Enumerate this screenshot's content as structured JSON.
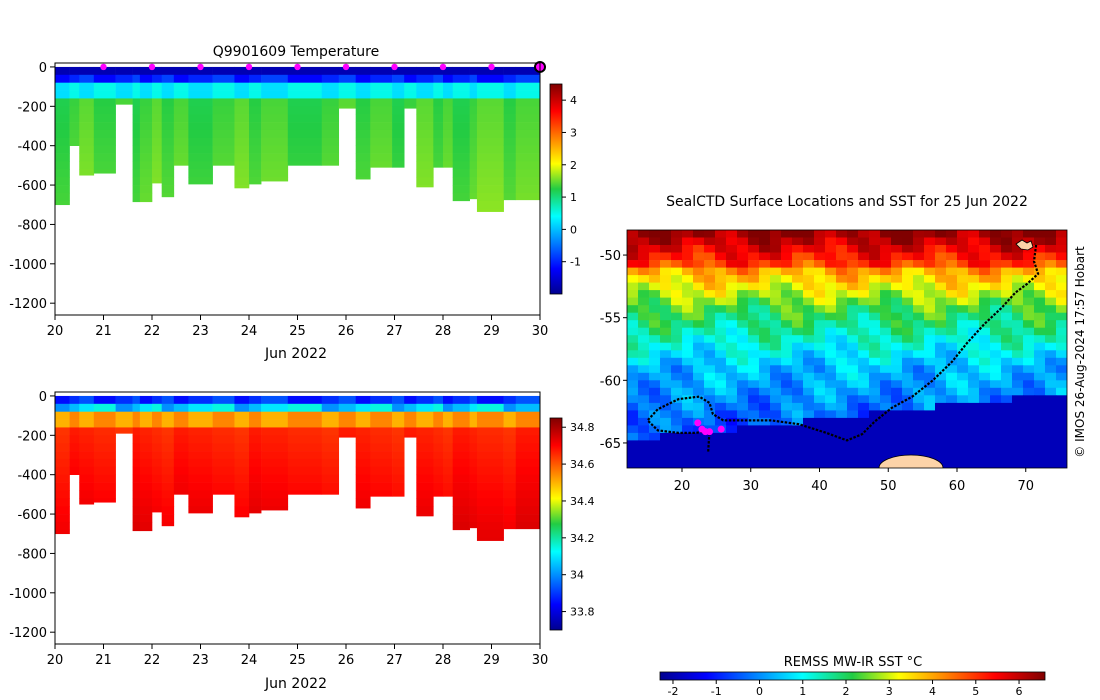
{
  "figure_title": "Q9901609  Temperature",
  "chart_data": [
    {
      "id": "temperature",
      "type": "heatmap",
      "title": "Q9901609  Temperature",
      "xlabel": "Jun 2022",
      "ylabel": "",
      "xlim": [
        20,
        30
      ],
      "ylim": [
        -1260,
        20
      ],
      "xticks": [
        20,
        21,
        22,
        23,
        24,
        25,
        26,
        27,
        28,
        29,
        30
      ],
      "yticks": [
        0,
        -200,
        -400,
        -600,
        -800,
        -1000,
        -1200
      ],
      "colorbar": {
        "range": [
          -2,
          4.5
        ],
        "ticks": [
          -1,
          0,
          1,
          2,
          3,
          4
        ]
      },
      "value_mode": "temperature",
      "surface_markers_x": [
        21,
        22,
        23,
        24,
        25,
        26,
        27,
        28,
        29,
        30
      ],
      "profile_x_edges": [
        20,
        20.3,
        20.5,
        20.8,
        21.25,
        21.6,
        21.75,
        22.0,
        22.2,
        22.45,
        22.75,
        23.25,
        23.7,
        24.0,
        24.25,
        24.8,
        25.5,
        25.85,
        26.2,
        26.5,
        26.95,
        27.2,
        27.45,
        27.8,
        28.0,
        28.2,
        28.55,
        28.7,
        29.25,
        29.5,
        30.0
      ],
      "profile_max_depth": [
        -700,
        -400,
        -550,
        -540,
        -190,
        -685,
        -685,
        -590,
        -660,
        -500,
        -595,
        -500,
        -615,
        -595,
        -580,
        -500,
        -500,
        -210,
        -570,
        -510,
        -510,
        -210,
        -610,
        -510,
        -510,
        -680,
        -670,
        -735,
        -675,
        -675
      ]
    },
    {
      "id": "salinity",
      "type": "heatmap",
      "title": "",
      "xlabel": "Jun 2022",
      "ylabel": "",
      "xlim": [
        20,
        30
      ],
      "ylim": [
        -1260,
        20
      ],
      "xticks": [
        20,
        21,
        22,
        23,
        24,
        25,
        26,
        27,
        28,
        29,
        30
      ],
      "yticks": [
        0,
        -200,
        -400,
        -600,
        -800,
        -1000,
        -1200
      ],
      "colorbar": {
        "range": [
          33.7,
          34.85
        ],
        "ticks": [
          33.8,
          34,
          34.2,
          34.4,
          34.6,
          34.8
        ]
      },
      "value_mode": "salinity",
      "profile_x_edges": [
        20,
        20.3,
        20.5,
        20.8,
        21.25,
        21.6,
        21.75,
        22.0,
        22.2,
        22.45,
        22.75,
        23.25,
        23.7,
        24.0,
        24.25,
        24.8,
        25.5,
        25.85,
        26.2,
        26.5,
        26.95,
        27.2,
        27.45,
        27.8,
        28.0,
        28.2,
        28.55,
        28.7,
        29.25,
        29.5,
        30.0
      ],
      "profile_max_depth": [
        -700,
        -400,
        -550,
        -540,
        -190,
        -685,
        -685,
        -590,
        -660,
        -500,
        -595,
        -500,
        -615,
        -595,
        -580,
        -500,
        -500,
        -210,
        -570,
        -510,
        -510,
        -210,
        -610,
        -510,
        -510,
        -680,
        -670,
        -735,
        -675,
        -675
      ]
    },
    {
      "id": "sst_map",
      "type": "heatmap",
      "title": "SealCTD Surface Locations and SST for 25 Jun 2022",
      "xlabel": "",
      "ylabel": "",
      "xlim": [
        12,
        76
      ],
      "ylim": [
        -67,
        -48
      ],
      "xticks": [
        20,
        30,
        40,
        50,
        60,
        70
      ],
      "yticks": [
        -50,
        -55,
        -60,
        -65
      ],
      "colorbar": {
        "label": "REMSS MW-IR SST °C",
        "range": [
          -2.3,
          6.6
        ],
        "ticks": [
          -2,
          -1,
          0,
          1,
          2,
          3,
          4,
          5,
          6
        ]
      },
      "track_points": [
        [
          71.5,
          -49.2
        ],
        [
          71.2,
          -50.5
        ],
        [
          71.8,
          -51.5
        ],
        [
          70.2,
          -52.3
        ],
        [
          68.5,
          -53.0
        ],
        [
          66.5,
          -54.2
        ],
        [
          64.0,
          -55.5
        ],
        [
          61.5,
          -57.0
        ],
        [
          59.3,
          -58.5
        ],
        [
          56.5,
          -60.0
        ],
        [
          53.5,
          -61.3
        ],
        [
          50.5,
          -62.2
        ],
        [
          48.0,
          -63.3
        ],
        [
          46.2,
          -64.3
        ],
        [
          44.0,
          -64.8
        ],
        [
          41.0,
          -64.2
        ],
        [
          37.0,
          -63.5
        ],
        [
          33.0,
          -63.2
        ],
        [
          29.0,
          -63.2
        ],
        [
          26.0,
          -63.2
        ],
        [
          24.5,
          -62.7
        ],
        [
          24.0,
          -61.8
        ],
        [
          22.5,
          -61.3
        ],
        [
          19.5,
          -61.5
        ],
        [
          16.5,
          -62.3
        ],
        [
          15.0,
          -63.2
        ],
        [
          16.5,
          -64.0
        ],
        [
          19.5,
          -64.2
        ],
        [
          22.0,
          -64.2
        ],
        [
          24.0,
          -64.0
        ],
        [
          23.8,
          -65.8
        ]
      ],
      "surface_locations": [
        [
          22.3,
          -63.4
        ],
        [
          22.9,
          -63.9
        ],
        [
          23.4,
          -64.1
        ],
        [
          24.0,
          -64.1
        ],
        [
          25.7,
          -63.9
        ]
      ],
      "land": "Antarctica coast, Kerguelen Islands"
    }
  ],
  "credit": "© IMOS 26-Aug-2024 17:57 Hobart",
  "colors": {
    "marker": "#ff00ff",
    "track": "#000000",
    "land": "#fdd3a8",
    "missing": "#ffffff"
  }
}
